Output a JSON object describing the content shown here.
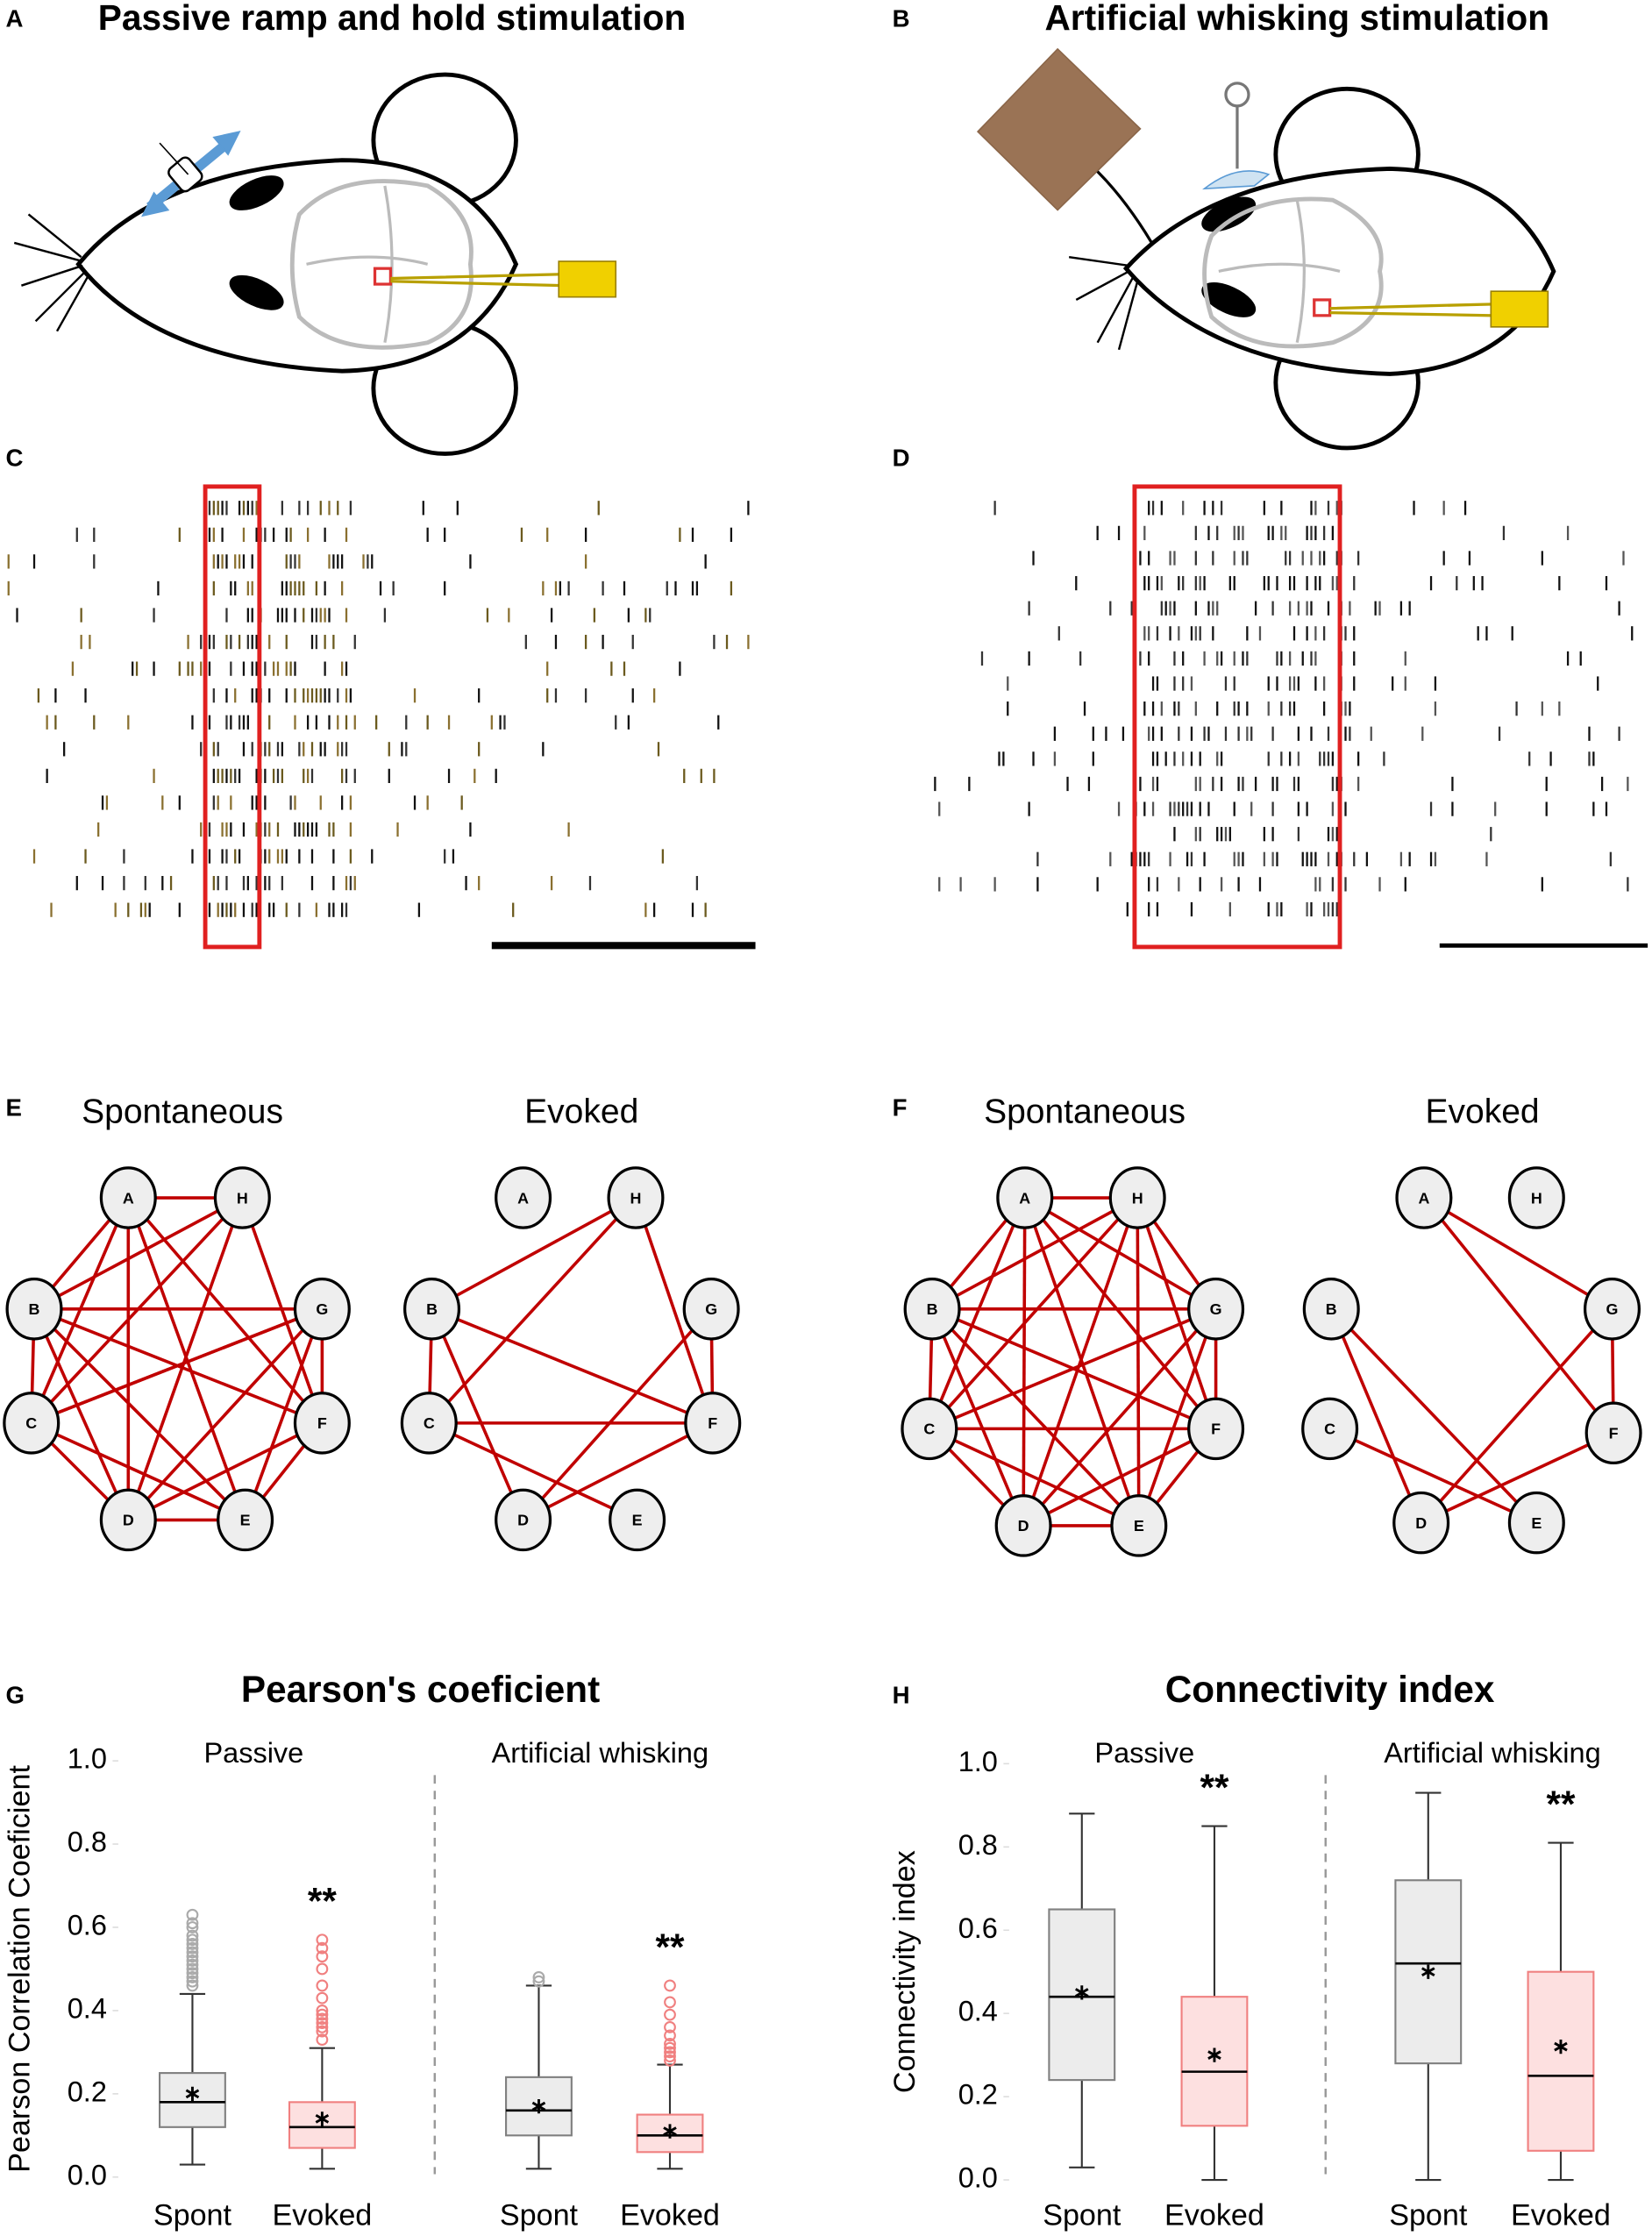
{
  "panels": [
    {
      "letter": "A",
      "title": "Passive ramp and hold stimulation"
    },
    {
      "letter": "B",
      "title": "Artificial whisking stimulation"
    },
    {
      "letter": "C"
    },
    {
      "letter": "D"
    }
  ],
  "networks": [
    {
      "letter": "E",
      "graphs": [
        {
          "title": "Spontaneous",
          "nodes": [
            "A",
            "H",
            "B",
            "G",
            "C",
            "F",
            "D",
            "E"
          ]
        },
        {
          "title": "Evoked",
          "nodes": [
            "A",
            "H",
            "B",
            "G",
            "C",
            "F",
            "D",
            "E"
          ]
        }
      ]
    },
    {
      "letter": "F",
      "graphs": [
        {
          "title": "Spontaneous",
          "nodes": [
            "A",
            "H",
            "B",
            "G",
            "C",
            "F",
            "D",
            "E"
          ]
        },
        {
          "title": "Evoked",
          "nodes": [
            "A",
            "H",
            "B",
            "G",
            "C",
            "F",
            "D",
            "E"
          ]
        }
      ]
    }
  ],
  "chart_data": [
    {
      "type": "box",
      "panel": "G",
      "title": "Pearson's coeficient",
      "ylabel": "Pearson Correlation Coeficient",
      "ylim": [
        0,
        1
      ],
      "yticks": [
        {
          "value": 0,
          "label": "0.0"
        },
        {
          "value": 0.2,
          "label": "0.2"
        },
        {
          "value": 0.4,
          "label": "0.4"
        },
        {
          "value": 0.6,
          "label": "0.6"
        },
        {
          "value": 0.8,
          "label": "0.8"
        },
        {
          "value": 1,
          "label": "1.0"
        }
      ],
      "grid": false,
      "groups": [
        {
          "name": "Passive",
          "boxes": [
            {
              "category": "Spont",
              "color": "#ececec",
              "edge_color": "#808080",
              "min": 0.03,
              "q1": 0.12,
              "median": 0.18,
              "q3": 0.25,
              "max": 0.44,
              "mean": 0.2,
              "outliers": [
                0.46,
                0.47,
                0.48,
                0.49,
                0.5,
                0.51,
                0.52,
                0.53,
                0.54,
                0.55,
                0.56,
                0.57,
                0.58,
                0.6,
                0.61,
                0.63
              ]
            },
            {
              "category": "Evoked",
              "color": "#fde0e0",
              "edge_color": "#f08080",
              "min": 0.02,
              "q1": 0.07,
              "median": 0.12,
              "q3": 0.18,
              "max": 0.31,
              "mean": 0.14,
              "annotation": "**",
              "outliers": [
                0.33,
                0.35,
                0.36,
                0.37,
                0.38,
                0.39,
                0.4,
                0.43,
                0.46,
                0.5,
                0.53,
                0.55,
                0.57
              ]
            }
          ]
        },
        {
          "name": "Artificial whisking",
          "boxes": [
            {
              "category": "Spont",
              "color": "#ececec",
              "edge_color": "#808080",
              "min": 0.02,
              "q1": 0.1,
              "median": 0.16,
              "q3": 0.24,
              "max": 0.46,
              "mean": 0.17,
              "outliers": [
                0.47,
                0.48
              ]
            },
            {
              "category": "Evoked",
              "color": "#fde0e0",
              "edge_color": "#f08080",
              "min": 0.02,
              "q1": 0.06,
              "median": 0.1,
              "q3": 0.15,
              "max": 0.27,
              "mean": 0.11,
              "annotation": "**",
              "outliers": [
                0.28,
                0.29,
                0.3,
                0.31,
                0.32,
                0.34,
                0.36,
                0.39,
                0.42,
                0.46
              ]
            }
          ]
        }
      ]
    },
    {
      "type": "box",
      "panel": "H",
      "title": "Connectivity index",
      "ylabel": "Connectivity index",
      "ylim": [
        0,
        1
      ],
      "yticks": [
        {
          "value": 0,
          "label": "0.0"
        },
        {
          "value": 0.2,
          "label": "0.2"
        },
        {
          "value": 0.4,
          "label": "0.4"
        },
        {
          "value": 0.6,
          "label": "0.6"
        },
        {
          "value": 0.8,
          "label": "0.8"
        },
        {
          "value": 1,
          "label": "1.0"
        }
      ],
      "grid": false,
      "groups": [
        {
          "name": "Passive",
          "boxes": [
            {
              "category": "Spont",
              "color": "#ececec",
              "edge_color": "#808080",
              "min": 0.03,
              "q1": 0.24,
              "median": 0.44,
              "q3": 0.65,
              "max": 0.88,
              "mean": 0.45,
              "outliers": []
            },
            {
              "category": "Evoked",
              "color": "#fde0e0",
              "edge_color": "#f08080",
              "min": 0,
              "q1": 0.13,
              "median": 0.26,
              "q3": 0.44,
              "max": 0.85,
              "mean": 0.3,
              "annotation": "**",
              "outliers": []
            }
          ]
        },
        {
          "name": "Artificial whisking",
          "boxes": [
            {
              "category": "Spont",
              "color": "#ececec",
              "edge_color": "#808080",
              "min": 0,
              "q1": 0.28,
              "median": 0.52,
              "q3": 0.72,
              "max": 0.93,
              "mean": 0.5,
              "outliers": []
            },
            {
              "category": "Evoked",
              "color": "#fde0e0",
              "edge_color": "#f08080",
              "min": 0,
              "q1": 0.07,
              "median": 0.25,
              "q3": 0.5,
              "max": 0.81,
              "mean": 0.32,
              "annotation": "**",
              "outliers": []
            }
          ]
        }
      ]
    }
  ]
}
